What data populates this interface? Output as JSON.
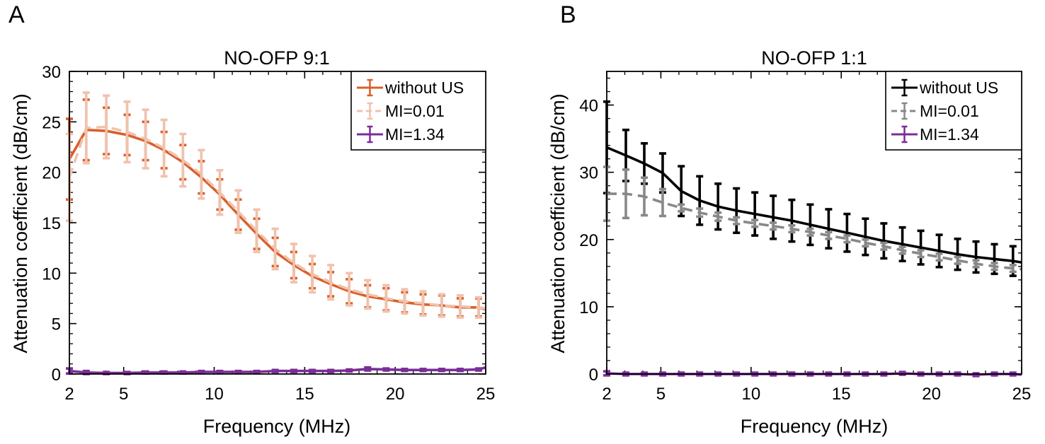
{
  "chart_data": [
    {
      "type": "line",
      "panel_label": "A",
      "title": "NO-OFP 9:1",
      "xlabel": "Frequency (MHz)",
      "ylabel": "Attenuation coefficient (dB/cm)",
      "xlim": [
        2,
        25
      ],
      "ylim": [
        0,
        30
      ],
      "xticks": [
        2,
        5,
        10,
        15,
        20,
        25
      ],
      "yticks": [
        0,
        5,
        10,
        15,
        20,
        25,
        30
      ],
      "legend_position": "top-right",
      "x": [
        2,
        2.93,
        4.04,
        5.19,
        6.21,
        7.23,
        8.27,
        9.29,
        10.31,
        11.33,
        12.35,
        13.37,
        14.4,
        15.42,
        16.44,
        17.46,
        18.48,
        19.5,
        20.52,
        21.54,
        22.57,
        23.59,
        24.61,
        25
      ],
      "series": [
        {
          "name": "without US",
          "color": "#d95f2b",
          "dash": "solid",
          "values": [
            21.3,
            24.2,
            24.1,
            23.7,
            23.1,
            22.2,
            21.0,
            19.5,
            17.8,
            15.8,
            13.9,
            12.1,
            10.8,
            9.7,
            8.9,
            8.2,
            7.7,
            7.4,
            7.1,
            6.9,
            6.8,
            6.6,
            6.6,
            6.4
          ],
          "errors": [
            4.0,
            3.0,
            2.3,
            2.0,
            1.9,
            1.8,
            1.7,
            1.6,
            1.5,
            1.5,
            1.5,
            1.4,
            1.3,
            1.2,
            1.2,
            1.2,
            1.1,
            1.1,
            1.0,
            1.0,
            1.0,
            0.9,
            0.9,
            0
          ]
        },
        {
          "name": "MI=0.01",
          "color": "#f0c2ad",
          "dash": "dashed",
          "values": [
            19.5,
            24.4,
            24.5,
            24.0,
            23.3,
            22.4,
            21.2,
            19.8,
            18.0,
            16.1,
            14.2,
            12.4,
            11.0,
            9.9,
            9.1,
            8.4,
            7.9,
            7.5,
            7.2,
            7.0,
            6.8,
            6.7,
            6.6,
            6.5
          ],
          "errors": [
            4.3,
            3.5,
            3.1,
            3.0,
            2.9,
            2.8,
            2.6,
            2.4,
            2.2,
            2.1,
            2.1,
            2.0,
            1.9,
            1.8,
            1.7,
            1.6,
            1.4,
            1.3,
            1.2,
            1.2,
            1.1,
            1.1,
            1.0,
            0
          ]
        },
        {
          "name": "MI=1.34",
          "color": "#7b2d98",
          "dash": "solid",
          "values": [
            0.3,
            0.15,
            0.1,
            0.1,
            0.15,
            0.15,
            0.15,
            0.2,
            0.2,
            0.2,
            0.2,
            0.3,
            0.3,
            0.3,
            0.3,
            0.35,
            0.5,
            0.45,
            0.4,
            0.4,
            0.4,
            0.4,
            0.45,
            0.65
          ],
          "errors": [
            0.25,
            0.15,
            0.1,
            0.1,
            0.1,
            0.1,
            0.1,
            0.1,
            0.1,
            0.1,
            0.1,
            0.1,
            0.1,
            0.1,
            0.1,
            0.1,
            0.15,
            0.1,
            0.1,
            0.1,
            0.1,
            0.1,
            0.1,
            0
          ]
        }
      ]
    },
    {
      "type": "line",
      "panel_label": "B",
      "title": "NO-OFP 1:1",
      "xlabel": "Frequency (MHz)",
      "ylabel": "Attenuation coefficient (dB/cm)",
      "xlim": [
        2,
        25
      ],
      "ylim": [
        0,
        45
      ],
      "xticks": [
        2,
        5,
        10,
        15,
        20,
        25
      ],
      "yticks": [
        0,
        10,
        20,
        30,
        40
      ],
      "legend_position": "top-right",
      "x": [
        2,
        3.06,
        4.08,
        5.1,
        6.13,
        7.15,
        8.17,
        9.19,
        10.21,
        11.23,
        12.26,
        13.28,
        14.3,
        15.32,
        16.34,
        17.36,
        18.39,
        19.41,
        20.43,
        21.45,
        22.47,
        23.49,
        24.52,
        25
      ],
      "series": [
        {
          "name": "without US",
          "color": "#000000",
          "dash": "solid",
          "values": [
            33.7,
            32.5,
            31.3,
            29.9,
            27.2,
            25.8,
            24.9,
            24.3,
            23.8,
            23.3,
            22.8,
            22.2,
            21.6,
            21.0,
            20.4,
            19.8,
            19.3,
            18.8,
            18.3,
            17.8,
            17.4,
            17.1,
            16.8,
            16.6
          ],
          "errors": [
            6.8,
            3.8,
            3.0,
            2.9,
            3.7,
            3.6,
            3.4,
            3.3,
            3.2,
            3.2,
            3.1,
            3.0,
            2.9,
            2.8,
            2.7,
            2.6,
            2.5,
            2.5,
            2.4,
            2.3,
            2.3,
            2.2,
            2.2,
            0
          ]
        },
        {
          "name": "MI=0.01",
          "color": "#888888",
          "dash": "dashed",
          "values": [
            26.8,
            26.8,
            26.4,
            25.5,
            24.7,
            24.0,
            23.4,
            22.8,
            22.4,
            22.0,
            21.6,
            21.1,
            20.6,
            20.1,
            19.5,
            19.0,
            18.4,
            17.9,
            17.4,
            16.9,
            16.4,
            16.0,
            15.7,
            15.6
          ],
          "errors": [
            4.0,
            3.6,
            2.8,
            2.0,
            0.5,
            0.6,
            0.6,
            0.5,
            0.5,
            0.5,
            0.5,
            0.5,
            0.5,
            0.5,
            0.5,
            0.5,
            0.5,
            0.5,
            0.5,
            0.5,
            0.5,
            0.5,
            0.5,
            0
          ]
        },
        {
          "name": "MI=1.34",
          "color": "#7b2d98",
          "dash": "solid",
          "values": [
            0.1,
            0.0,
            0.0,
            0.0,
            0.0,
            0.0,
            0.0,
            0.0,
            0.0,
            0.0,
            0.0,
            0.0,
            0.0,
            0.0,
            0.0,
            0.0,
            0.1,
            0.0,
            0.0,
            0.0,
            -0.1,
            0.0,
            0.0,
            -0.1
          ],
          "errors": [
            0.3,
            0.2,
            0.2,
            0.2,
            0.2,
            0.2,
            0.2,
            0.2,
            0.2,
            0.2,
            0.2,
            0.2,
            0.2,
            0.2,
            0.2,
            0.2,
            0.2,
            0.2,
            0.2,
            0.2,
            0.2,
            0.2,
            0.2,
            0
          ]
        }
      ]
    }
  ]
}
